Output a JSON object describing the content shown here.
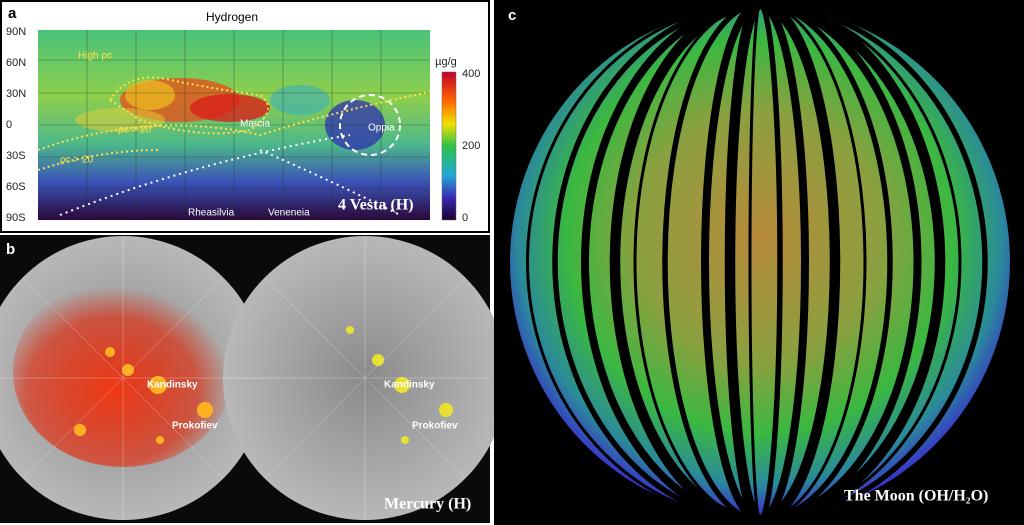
{
  "panels": {
    "a": {
      "label": "a",
      "title": "Hydrogen",
      "lat_labels": [
        "90N",
        "60N",
        "30N",
        "0",
        "30S",
        "60S",
        "90S"
      ],
      "colorbar": {
        "unit": "µg/g",
        "ticks": [
          400,
          200,
          0
        ]
      },
      "annotations": [
        "High ρc",
        "ρc > 20",
        "ρc > 20",
        "Marcia",
        "Oppia",
        "Rheasilvia",
        "Veneneia"
      ],
      "caption": "4 Vesta (H)"
    },
    "b": {
      "label": "b",
      "left_annotations": [
        "Kandinsky",
        "Prokofiev"
      ],
      "right_annotations": [
        "Kandinsky",
        "Prokofiev"
      ],
      "caption": "Mercury (H)"
    },
    "c": {
      "label": "c",
      "caption": "The Moon (OH/H₂O)"
    }
  }
}
